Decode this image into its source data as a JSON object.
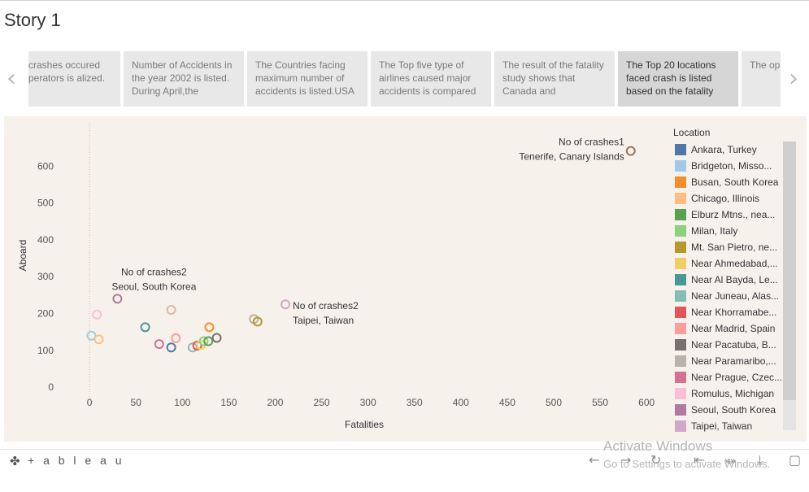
{
  "story": {
    "title": "Story 1"
  },
  "captions": [
    {
      "text": "crashes occured perators is alized.",
      "active": false
    },
    {
      "text": "Number of Accidents in the year 2002 is listed. During April,the",
      "active": false
    },
    {
      "text": "The Countries facing maximum number of accidents is listed.USA",
      "active": false
    },
    {
      "text": "The Top five type of airlines caused major accidents is compared",
      "active": false
    },
    {
      "text": "The result of the fatality study shows that Canada and",
      "active": false
    },
    {
      "text": "The Top 20 locations faced crash is listed based on the fatality",
      "active": true
    },
    {
      "text": "The op faced v numbe",
      "active": false
    }
  ],
  "nav": {
    "prev_icon": "chevron-left-icon",
    "next_icon": "chevron-right-icon"
  },
  "chart_data": {
    "type": "scatter",
    "xlabel": "Fatalities",
    "ylabel": "Aboard",
    "xlim": [
      -15,
      620
    ],
    "ylim": [
      -15,
      680
    ],
    "xticks": [
      0,
      50,
      100,
      150,
      200,
      250,
      300,
      350,
      400,
      450,
      500,
      550,
      600
    ],
    "yticks": [
      0,
      100,
      200,
      300,
      400,
      500,
      600
    ],
    "grid": false,
    "legend_title": "Location",
    "legend_placement": "right",
    "legend": [
      {
        "label": "Ankara, Turkey",
        "color": "#4e79a7"
      },
      {
        "label": "Bridgeton, Misso...",
        "color": "#a0cbe8"
      },
      {
        "label": "Busan, South Korea",
        "color": "#f28e2b"
      },
      {
        "label": "Chicago, Illinois",
        "color": "#ffbe7d"
      },
      {
        "label": "Elburz Mtns., nea...",
        "color": "#59a14f"
      },
      {
        "label": "Milan, Italy",
        "color": "#8cd17d"
      },
      {
        "label": "Mt. San Pietro, ne...",
        "color": "#b6992d"
      },
      {
        "label": "Near Ahmedabad,...",
        "color": "#f1ce63"
      },
      {
        "label": "Near Al Bayda, Le...",
        "color": "#499894"
      },
      {
        "label": "Near Juneau, Alas...",
        "color": "#86bcb6"
      },
      {
        "label": "Near Khorramabe...",
        "color": "#e15759"
      },
      {
        "label": "Near Madrid, Spain",
        "color": "#ff9d9a"
      },
      {
        "label": "Near Pacatuba, B...",
        "color": "#79706e"
      },
      {
        "label": "Near Paramaribo,...",
        "color": "#bab0ac"
      },
      {
        "label": "Near Prague, Czec...",
        "color": "#d37295"
      },
      {
        "label": "Romulus, Michigan",
        "color": "#fabfd2"
      },
      {
        "label": "Seoul, South Korea",
        "color": "#b07aa1"
      },
      {
        "label": "Taipei, Taiwan",
        "color": "#d4a6c8"
      }
    ],
    "points": [
      {
        "x": 583,
        "y": 641,
        "color": "#9c755f"
      },
      {
        "x": 30,
        "y": 240,
        "color": "#b07aa1"
      },
      {
        "x": 211,
        "y": 225,
        "color": "#d4a6c8"
      },
      {
        "x": 2,
        "y": 140,
        "color": "#a0cbe8"
      },
      {
        "x": 8,
        "y": 197,
        "color": "#fabfd2"
      },
      {
        "x": 10,
        "y": 130,
        "color": "#ffbe7d"
      },
      {
        "x": 60,
        "y": 163,
        "color": "#499894"
      },
      {
        "x": 75,
        "y": 117,
        "color": "#d37295"
      },
      {
        "x": 88,
        "y": 210,
        "color": "#e0b8a8"
      },
      {
        "x": 88,
        "y": 108,
        "color": "#4e79a7"
      },
      {
        "x": 93,
        "y": 133,
        "color": "#ff9d9a"
      },
      {
        "x": 111,
        "y": 108,
        "color": "#86bcb6"
      },
      {
        "x": 116,
        "y": 113,
        "color": "#e15759"
      },
      {
        "x": 120,
        "y": 115,
        "color": "#f1ce63"
      },
      {
        "x": 123,
        "y": 125,
        "color": "#8cd17d"
      },
      {
        "x": 128,
        "y": 125,
        "color": "#59a14f"
      },
      {
        "x": 129,
        "y": 163,
        "color": "#f28e2b"
      },
      {
        "x": 137,
        "y": 134,
        "color": "#79706e"
      },
      {
        "x": 177,
        "y": 185,
        "color": "#bab0ac"
      },
      {
        "x": 181,
        "y": 178,
        "color": "#b6992d"
      }
    ],
    "annotations": [
      {
        "x": 583,
        "y": 641,
        "line1": "No of crashes1",
        "line2": "Tenerife, Canary Islands",
        "anchor": "end",
        "dx": -8,
        "dy1": -7,
        "dy2": 11
      },
      {
        "x": 30,
        "y": 240,
        "line1": "No of crashes2",
        "line2": "Seoul, South Korea",
        "anchor": "middle",
        "dx": 45,
        "dy1": -29,
        "dy2": -11
      },
      {
        "x": 211,
        "y": 225,
        "line1": "No of crashes2",
        "line2": "Taipei, Taiwan",
        "anchor": "start",
        "dx": 9,
        "dy1": 6,
        "dy2": 24
      }
    ]
  },
  "toolbar": {
    "logo_text": "+ a b l e a u",
    "icons": [
      "undo-icon",
      "redo-icon",
      "revert-icon",
      "revert-all-icon",
      "share-icon",
      "download-icon",
      "fullscreen-icon"
    ]
  },
  "watermark": {
    "line1": "Activate Windows",
    "line2": "Go to Settings to activate Windows."
  }
}
